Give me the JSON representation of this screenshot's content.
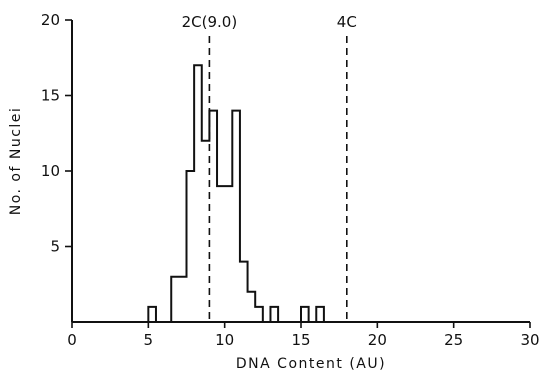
{
  "chart_data": {
    "type": "bar",
    "xlabel": "DNA Content (AU)",
    "ylabel": "No. of Nuclei",
    "xlim": [
      0,
      30
    ],
    "ylim": [
      0,
      20
    ],
    "xticks": [
      0,
      5,
      10,
      15,
      20,
      25,
      30
    ],
    "yticks": [
      5,
      10,
      15,
      20
    ],
    "bin_width": 0.5,
    "bins": [
      {
        "x": 5.0,
        "y": 1
      },
      {
        "x": 6.5,
        "y": 3
      },
      {
        "x": 7.0,
        "y": 3
      },
      {
        "x": 7.5,
        "y": 10
      },
      {
        "x": 8.0,
        "y": 17
      },
      {
        "x": 8.5,
        "y": 12
      },
      {
        "x": 9.0,
        "y": 14
      },
      {
        "x": 9.5,
        "y": 9
      },
      {
        "x": 10.0,
        "y": 9
      },
      {
        "x": 10.5,
        "y": 14
      },
      {
        "x": 11.0,
        "y": 4
      },
      {
        "x": 11.5,
        "y": 2
      },
      {
        "x": 12.0,
        "y": 1
      },
      {
        "x": 13.0,
        "y": 1
      },
      {
        "x": 15.0,
        "y": 1
      },
      {
        "x": 16.0,
        "y": 1
      }
    ],
    "reference_lines": [
      {
        "x": 9.0,
        "label": "2C(9.0)"
      },
      {
        "x": 18.0,
        "label": "4C"
      }
    ],
    "grid": false,
    "legend": "none"
  }
}
